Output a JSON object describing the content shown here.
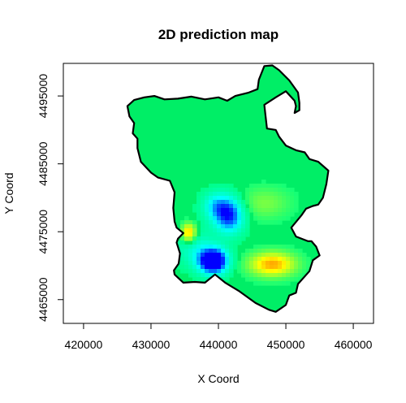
{
  "chart_data": {
    "type": "heatmap",
    "title": "2D prediction map",
    "xlabel": "X Coord",
    "ylabel": "Y Coord",
    "xlim": [
      417000,
      463000
    ],
    "ylim": [
      4461500,
      4499800
    ],
    "xticks": [
      420000,
      430000,
      440000,
      450000,
      460000
    ],
    "yticks": [
      4465000,
      4475000,
      4485000,
      4495000
    ],
    "xtick_labels": [
      "420000",
      "430000",
      "440000",
      "450000",
      "460000"
    ],
    "ytick_labels": [
      "4465000",
      "4475000",
      "4485000",
      "4495000"
    ],
    "colormap": [
      "#ff00ff",
      "#ff0000",
      "#ffff00",
      "#00ff80",
      "#00ffff",
      "#0000ff"
    ],
    "background_color": "#00ee66",
    "boundary": [
      [
        438000,
        4467500
      ],
      [
        439500,
        4468700
      ],
      [
        441000,
        4467500
      ],
      [
        443000,
        4466300
      ],
      [
        445500,
        4464500
      ],
      [
        447500,
        4463500
      ],
      [
        448500,
        4463200
      ],
      [
        450000,
        4464200
      ],
      [
        450500,
        4465600
      ],
      [
        451500,
        4466000
      ],
      [
        451800,
        4467300
      ],
      [
        453500,
        4469200
      ],
      [
        454000,
        4470800
      ],
      [
        455000,
        4471500
      ],
      [
        454500,
        4472800
      ],
      [
        453800,
        4473600
      ],
      [
        453300,
        4473600
      ],
      [
        451500,
        4474300
      ],
      [
        450800,
        4475600
      ],
      [
        452300,
        4477400
      ],
      [
        453000,
        4478400
      ],
      [
        454000,
        4478800
      ],
      [
        454800,
        4479000
      ],
      [
        455500,
        4480000
      ],
      [
        456000,
        4482000
      ],
      [
        456300,
        4484000
      ],
      [
        454800,
        4485300
      ],
      [
        453500,
        4485700
      ],
      [
        452800,
        4486700
      ],
      [
        451500,
        4487000
      ],
      [
        450000,
        4487700
      ],
      [
        449000,
        4489000
      ],
      [
        448500,
        4490000
      ],
      [
        447200,
        4490200
      ],
      [
        447000,
        4492000
      ],
      [
        446800,
        4493700
      ],
      [
        448500,
        4494800
      ],
      [
        450000,
        4495700
      ],
      [
        451300,
        4494300
      ],
      [
        451500,
        4493500
      ],
      [
        451300,
        4492500
      ],
      [
        452000,
        4492900
      ],
      [
        452000,
        4494000
      ],
      [
        451800,
        4495500
      ],
      [
        450500,
        4497300
      ],
      [
        449000,
        4498800
      ],
      [
        448000,
        4499500
      ],
      [
        446800,
        4499400
      ],
      [
        446000,
        4497400
      ],
      [
        445800,
        4496000
      ],
      [
        444500,
        4495500
      ],
      [
        442500,
        4495000
      ],
      [
        441300,
        4494300
      ],
      [
        440000,
        4494800
      ],
      [
        438000,
        4494500
      ],
      [
        436000,
        4494900
      ],
      [
        434000,
        4494600
      ],
      [
        432000,
        4494500
      ],
      [
        430500,
        4495000
      ],
      [
        429000,
        4494800
      ],
      [
        427500,
        4494400
      ],
      [
        426500,
        4493500
      ],
      [
        426800,
        4492000
      ],
      [
        427500,
        4491000
      ],
      [
        427300,
        4489500
      ],
      [
        428000,
        4488700
      ],
      [
        428000,
        4487300
      ],
      [
        428500,
        4485300
      ],
      [
        430000,
        4483700
      ],
      [
        431000,
        4483000
      ],
      [
        432800,
        4482500
      ],
      [
        433500,
        4480800
      ],
      [
        433300,
        4478500
      ],
      [
        433500,
        4476500
      ],
      [
        433800,
        4475600
      ],
      [
        434800,
        4474800
      ],
      [
        434000,
        4474000
      ],
      [
        433800,
        4473400
      ],
      [
        434300,
        4471800
      ],
      [
        434100,
        4470300
      ],
      [
        433400,
        4469300
      ],
      [
        433500,
        4468700
      ],
      [
        434800,
        4467500
      ],
      [
        436500,
        4467600
      ]
    ],
    "hotspots": [
      {
        "x": 439200,
        "y": 4470700,
        "sx": 1500,
        "sy": 1300,
        "amp": -2.2
      },
      {
        "x": 436300,
        "y": 4473000,
        "sx": 2000,
        "sy": 2000,
        "amp": -0.45
      },
      {
        "x": 441600,
        "y": 4477400,
        "sx": 1500,
        "sy": 1800,
        "amp": -1.4
      },
      {
        "x": 439600,
        "y": 4478800,
        "sx": 1400,
        "sy": 1400,
        "amp": -0.7
      },
      {
        "x": 435600,
        "y": 4474800,
        "sx": 850,
        "sy": 1050,
        "amp": 1.15
      },
      {
        "x": 448000,
        "y": 4470200,
        "sx": 2500,
        "sy": 1300,
        "amp": 1.0
      },
      {
        "x": 446800,
        "y": 4479200,
        "sx": 2800,
        "sy": 1700,
        "amp": 0.35
      }
    ]
  }
}
